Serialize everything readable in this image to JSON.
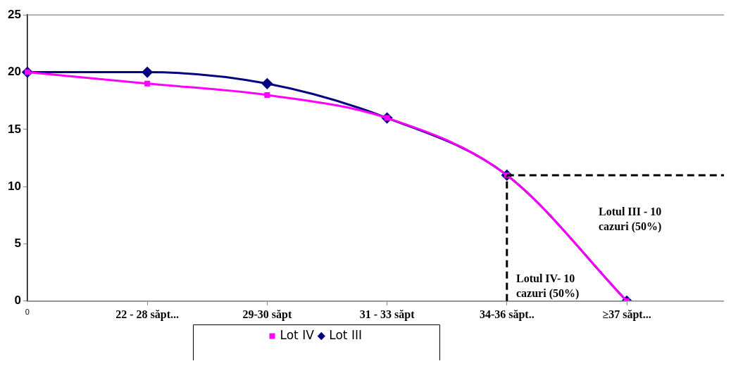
{
  "chart_data": {
    "type": "line",
    "categories": [
      "0",
      "22 - 28 săpt...",
      "29-30 săpt",
      "31 - 33 săpt",
      "34-36 săpt..",
      "≥37 săpt..."
    ],
    "series": [
      {
        "name": "Lot III",
        "color": "#000080",
        "values": [
          20,
          20,
          19,
          16,
          11,
          0
        ],
        "marker": "diamond"
      },
      {
        "name": "Lot IV",
        "color": "#ff00ff",
        "values": [
          20,
          19,
          18,
          16,
          11,
          0
        ],
        "marker": "square"
      }
    ],
    "ylim": [
      0,
      25
    ],
    "yticks": [
      0,
      5,
      10,
      15,
      20,
      25
    ],
    "ref_lines": [
      {
        "axis": "x",
        "value": "34-36 săpt..",
        "line_style": "dashed",
        "color": "#000000"
      },
      {
        "axis": "y",
        "value": 11,
        "line_style": "dashed",
        "color": "#000000"
      }
    ],
    "annotations": [
      "Lotul III - 10 cazuri (50%)",
      "Lotul IV- 10 cazuri (50%)"
    ],
    "legend": "bottom",
    "grid": false
  }
}
